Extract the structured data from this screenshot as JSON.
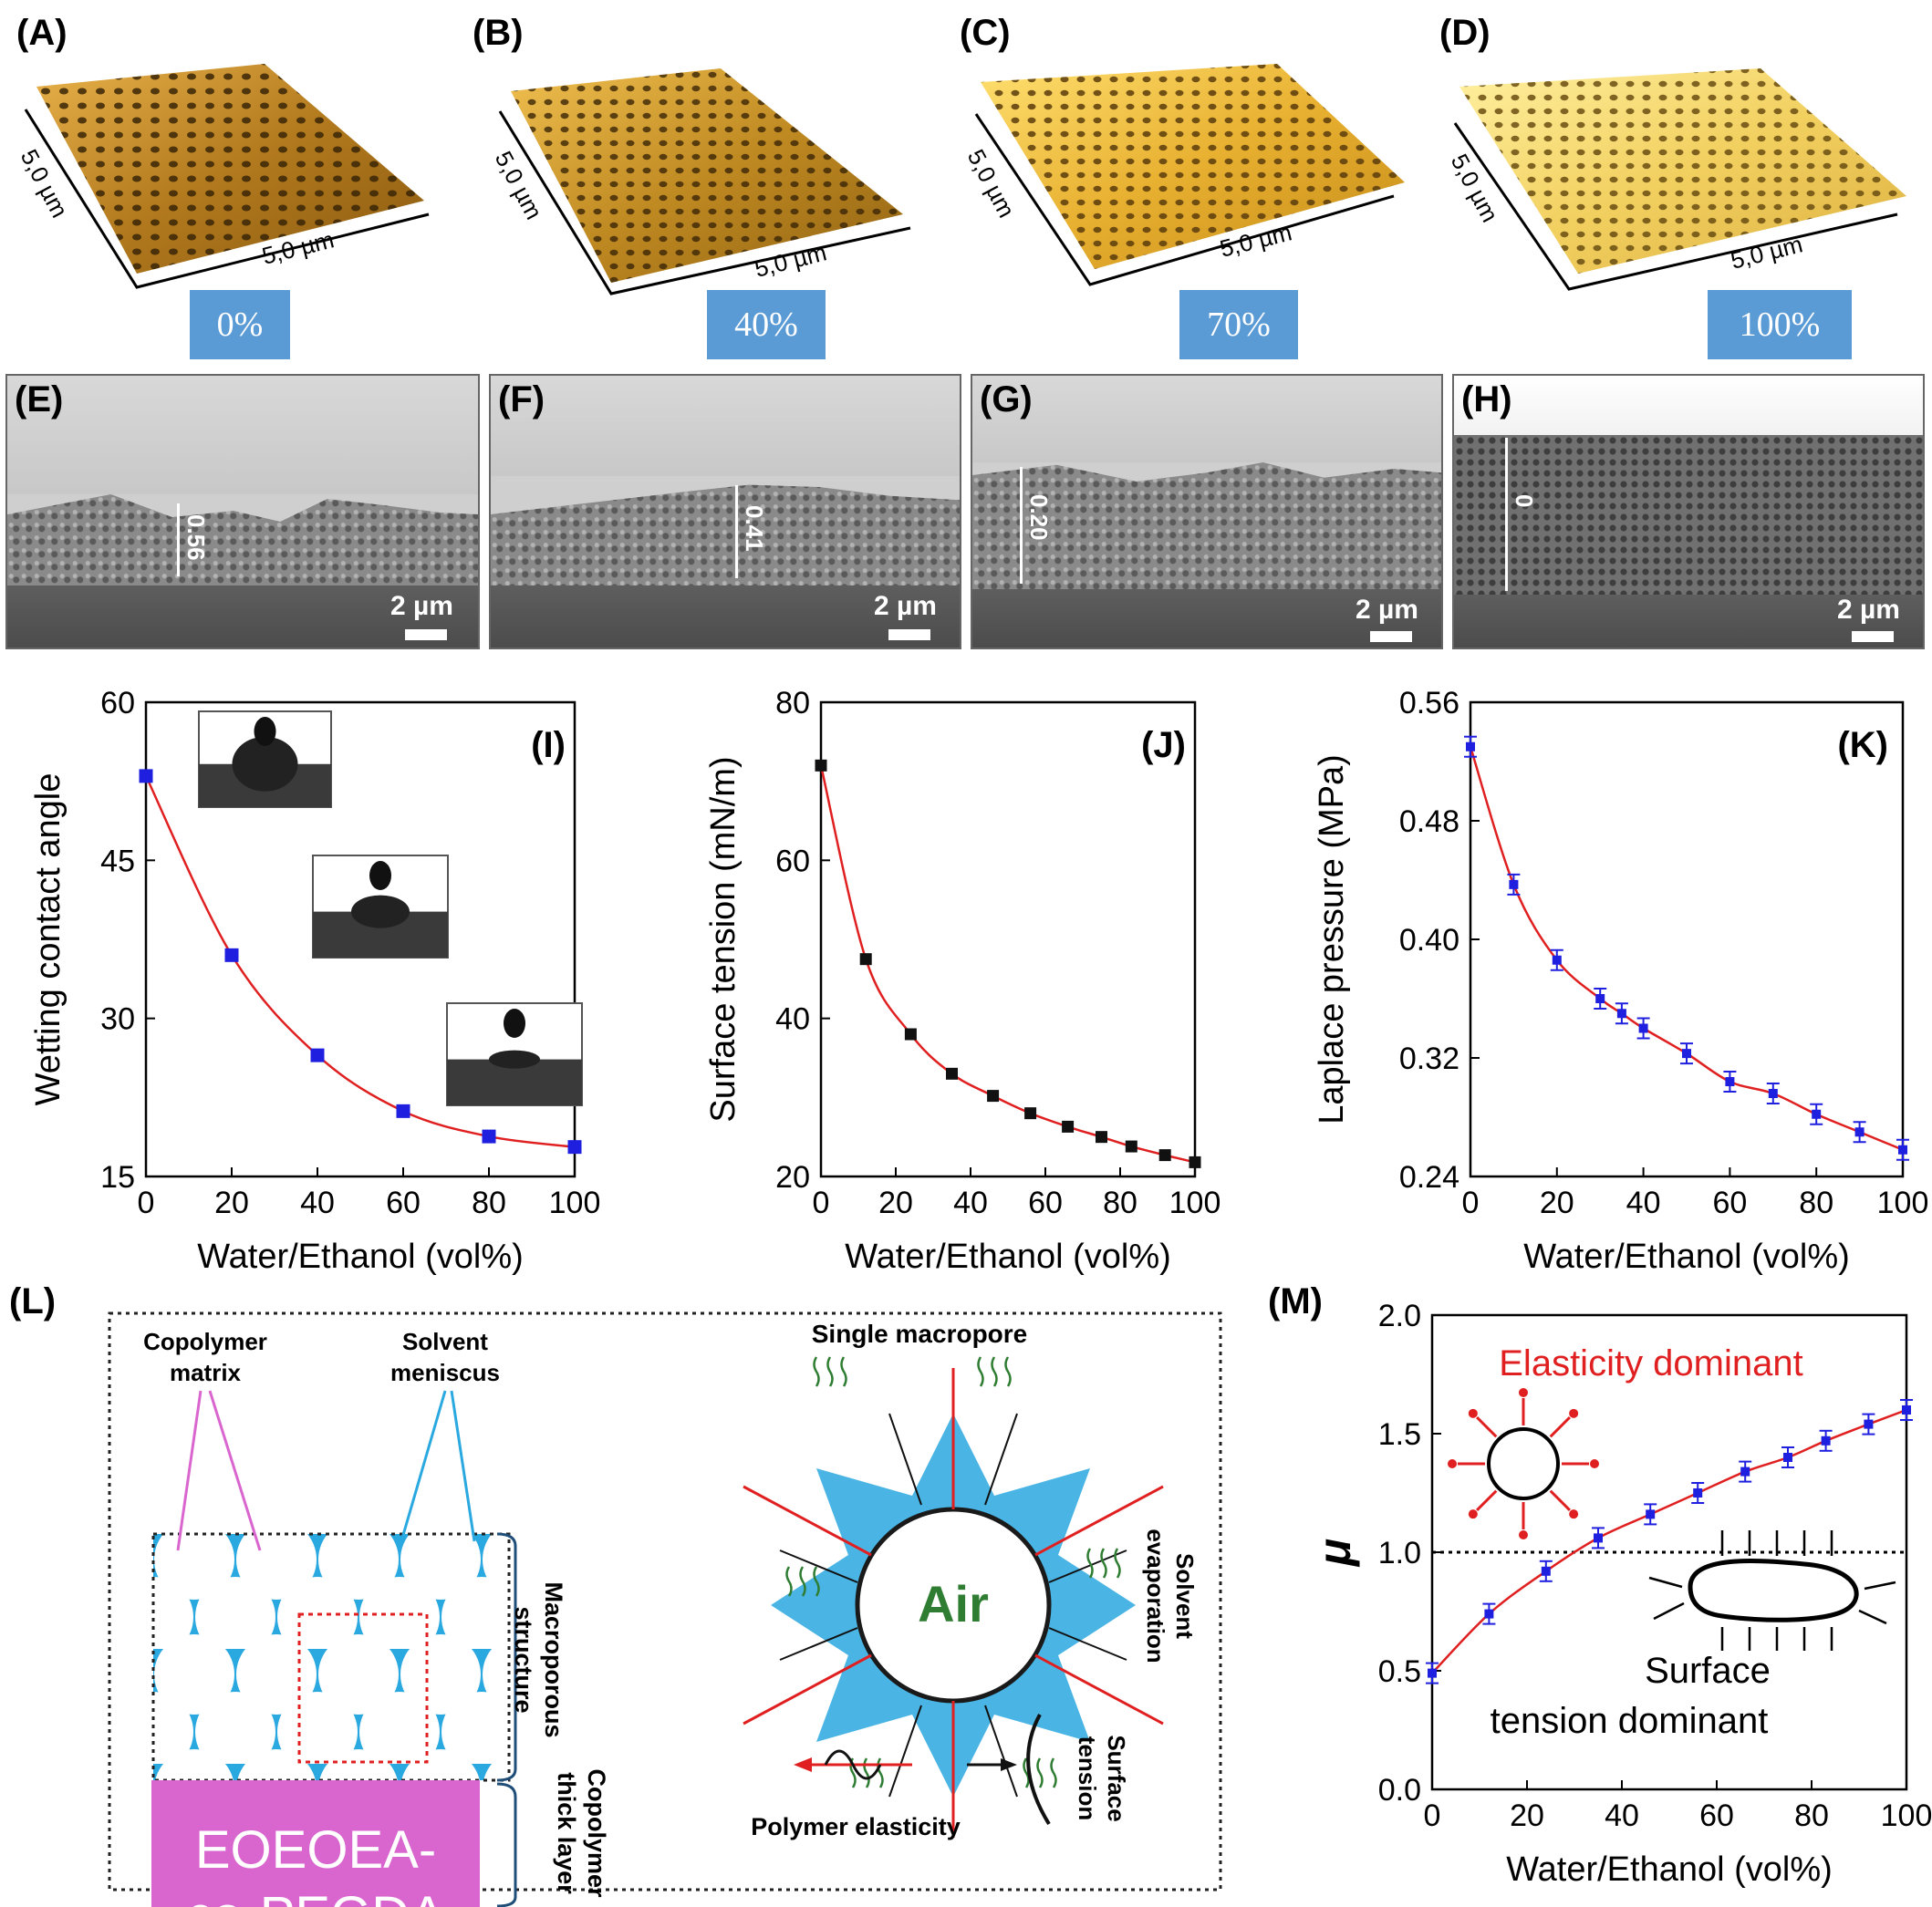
{
  "afm": {
    "panels": [
      {
        "label": "(A)",
        "axis_a": "5,0 µm",
        "axis_b": "5,0 µm",
        "badge": "0%"
      },
      {
        "label": "(B)",
        "axis_a": "5,0 µm",
        "axis_b": "5,0 µm",
        "badge": "40%"
      },
      {
        "label": "(C)",
        "axis_a": "5,0 µm",
        "axis_b": "5,0 µm",
        "badge": "70%"
      },
      {
        "label": "(D)",
        "axis_a": "5,0 µm",
        "axis_b": "5,0 µm",
        "badge": "100%"
      }
    ]
  },
  "sem": {
    "panels": [
      {
        "label": "(E)",
        "thickness": "0.56",
        "scale": "2 µm"
      },
      {
        "label": "(F)",
        "thickness": "0.41",
        "scale": "2 µm"
      },
      {
        "label": "(G)",
        "thickness": "0.20",
        "scale": "2 µm"
      },
      {
        "label": "(H)",
        "thickness": "0",
        "scale": "2 µm"
      }
    ]
  },
  "chart_data": [
    {
      "panel": "(I)",
      "type": "line",
      "xlabel": "Water/Ethanol (vol%)",
      "ylabel": "Wetting contact angle",
      "xlim": [
        0,
        100
      ],
      "ylim": [
        15,
        60
      ],
      "xticks": [
        "0",
        "20",
        "40",
        "60",
        "80",
        "100"
      ],
      "yticks": [
        "15",
        "30",
        "45",
        "60"
      ],
      "marker_color": "#1f1fe0",
      "line_color": "#e02020",
      "x": [
        0,
        20,
        40,
        60,
        80,
        100
      ],
      "y": [
        53,
        36,
        26.5,
        21.2,
        18.8,
        17.8
      ]
    },
    {
      "panel": "(J)",
      "type": "line",
      "xlabel": "Water/Ethanol (vol%)",
      "ylabel": "Surface tension (mN/m)",
      "xlim": [
        0,
        100
      ],
      "ylim": [
        20,
        80
      ],
      "xticks": [
        "0",
        "20",
        "40",
        "60",
        "80",
        "100"
      ],
      "yticks": [
        "20",
        "40",
        "60",
        "80"
      ],
      "marker_color": "#111111",
      "line_color": "#e02020",
      "x": [
        0,
        12,
        24,
        35,
        46,
        56,
        66,
        75,
        83,
        92,
        100
      ],
      "y": [
        72,
        47.5,
        38,
        33,
        30.2,
        28,
        26.3,
        25,
        23.8,
        22.7,
        21.8
      ]
    },
    {
      "panel": "(K)",
      "type": "line",
      "xlabel": "Water/Ethanol (vol%)",
      "ylabel": "Laplace pressure (MPa)",
      "xlim": [
        0,
        100
      ],
      "ylim": [
        0.24,
        0.56
      ],
      "xticks": [
        "0",
        "20",
        "40",
        "60",
        "80",
        "100"
      ],
      "yticks": [
        "0.24",
        "0.32",
        "0.40",
        "0.48",
        "0.56"
      ],
      "marker_color": "#1f1fe0",
      "line_color": "#e02020",
      "x": [
        0,
        10,
        20,
        30,
        35,
        40,
        50,
        60,
        70,
        80,
        90,
        100
      ],
      "y": [
        0.53,
        0.437,
        0.386,
        0.36,
        0.35,
        0.34,
        0.323,
        0.304,
        0.296,
        0.282,
        0.27,
        0.258
      ]
    },
    {
      "panel": "(M)",
      "type": "line",
      "xlabel": "Water/Ethanol  (vol%)",
      "ylabel": "μ",
      "xlim": [
        0,
        100
      ],
      "ylim": [
        0.0,
        2.0
      ],
      "xticks": [
        "0",
        "20",
        "40",
        "60",
        "80",
        "100"
      ],
      "yticks": [
        "0.0",
        "0.5",
        "1.0",
        "1.5",
        "2.0"
      ],
      "reference_line": 1.0,
      "marker_color": "#1f1fe0",
      "line_color": "#e02020",
      "x": [
        0,
        12,
        24,
        35,
        46,
        56,
        66,
        75,
        83,
        92,
        100
      ],
      "y": [
        0.49,
        0.74,
        0.92,
        1.06,
        1.16,
        1.25,
        1.34,
        1.4,
        1.47,
        1.54,
        1.6
      ],
      "annotations": {
        "top": "Elasticity dominant",
        "bottom_line1": "Surface",
        "bottom_line2": "tension dominant"
      }
    }
  ],
  "schematic": {
    "label": "(L)",
    "copolymer_matrix_l1": "Copolymer",
    "copolymer_matrix_l2": "matrix",
    "solvent_meniscus_l1": "Solvent",
    "solvent_meniscus_l2": "meniscus",
    "macroporous_l1": "Macroporous",
    "macroporous_l2": "structure",
    "copolymer_thick_l1": "Copolymer",
    "copolymer_thick_l2": "thick layer",
    "film_l1": "EOEOEA-",
    "film_l2": "co-PEGDA",
    "single_macropore": "Single macropore",
    "air": "Air",
    "solvent_evap_l1": "Solvent",
    "solvent_evap_l2": "evaporation",
    "polymer_elasticity": "Polymer elasticity",
    "surface_tension_l1": "Surface",
    "surface_tension_l2": "tension"
  },
  "colors": {
    "badge": "#5b9bd5",
    "magenta": "#d966cf",
    "cyan": "#2aa8e0",
    "red": "#e02020",
    "blue": "#1f1fe0",
    "green": "#2f7d32"
  }
}
